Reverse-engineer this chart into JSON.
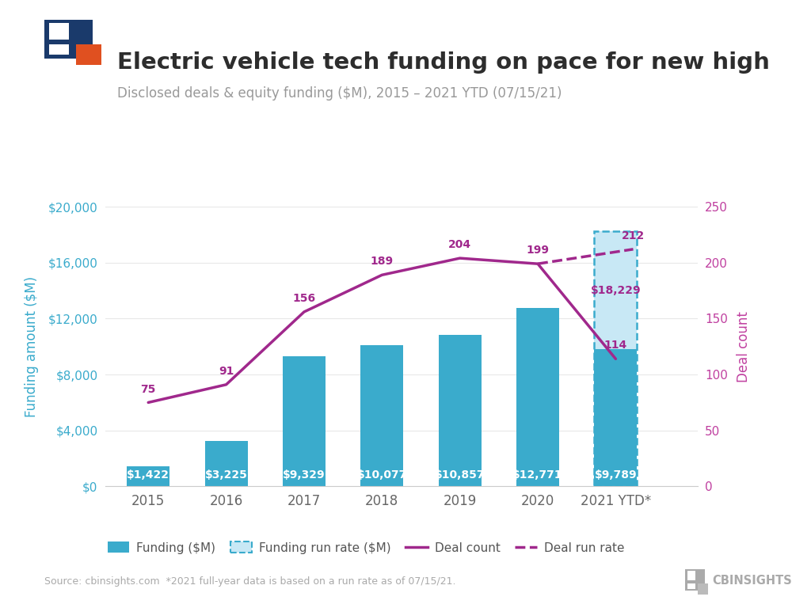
{
  "title": "Electric vehicle tech funding on pace for new high",
  "subtitle": "Disclosed deals & equity funding ($M), 2015 – 2021 YTD (07/15/21)",
  "ylabel_left": "Funding amount ($M)",
  "ylabel_right": "Deal count",
  "source": "Source: cbinsights.com  *2021 full-year data is based on a run rate as of 07/15/21.",
  "categories": [
    "2015",
    "2016",
    "2017",
    "2018",
    "2019",
    "2020",
    "2021 YTD*"
  ],
  "funding_values": [
    1422,
    3225,
    9329,
    10077,
    10857,
    12771,
    9789
  ],
  "funding_run_rate": 18229,
  "deal_counts": [
    75,
    91,
    156,
    189,
    204,
    199,
    114
  ],
  "deal_run_rate": 212,
  "bar_color": "#3aabcc",
  "bar_run_rate_color": "#c8e8f5",
  "line_color": "#a0288c",
  "title_color": "#2d2d2d",
  "subtitle_color": "#999999",
  "left_axis_color": "#3aabcc",
  "right_axis_color": "#c040a0",
  "tick_color": "#666666",
  "ylim_left": [
    0,
    20000
  ],
  "ylim_right": [
    0,
    250
  ],
  "yticks_left": [
    0,
    4000,
    8000,
    12000,
    16000,
    20000
  ],
  "yticks_right": [
    0,
    50,
    100,
    150,
    200,
    250
  ],
  "background_color": "#ffffff",
  "icon_blue": "#1a3a6b",
  "icon_orange": "#e05020"
}
